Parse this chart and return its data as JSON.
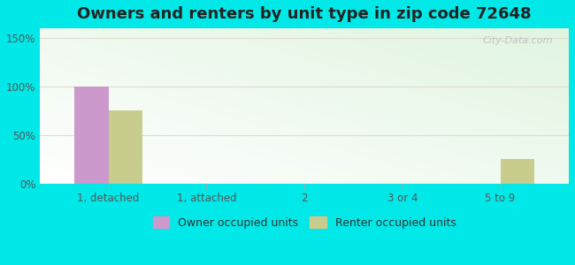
{
  "title": "Owners and renters by unit type in zip code 72648",
  "categories": [
    "1, detached",
    "1, attached",
    "2",
    "3 or 4",
    "5 to 9"
  ],
  "owner_values": [
    100,
    0,
    0,
    0,
    0
  ],
  "renter_values": [
    75,
    0,
    0,
    0,
    25
  ],
  "owner_color": "#cc99cc",
  "renter_color": "#c8cc8c",
  "yticks": [
    0,
    50,
    100,
    150
  ],
  "ytick_labels": [
    "0%",
    "50%",
    "100%",
    "150%"
  ],
  "ylim": [
    0,
    160
  ],
  "background_outer": "#00e8e8",
  "bar_width": 0.35,
  "title_fontsize": 13,
  "watermark": "City-Data.com",
  "legend_owner": "Owner occupied units",
  "legend_renter": "Renter occupied units"
}
